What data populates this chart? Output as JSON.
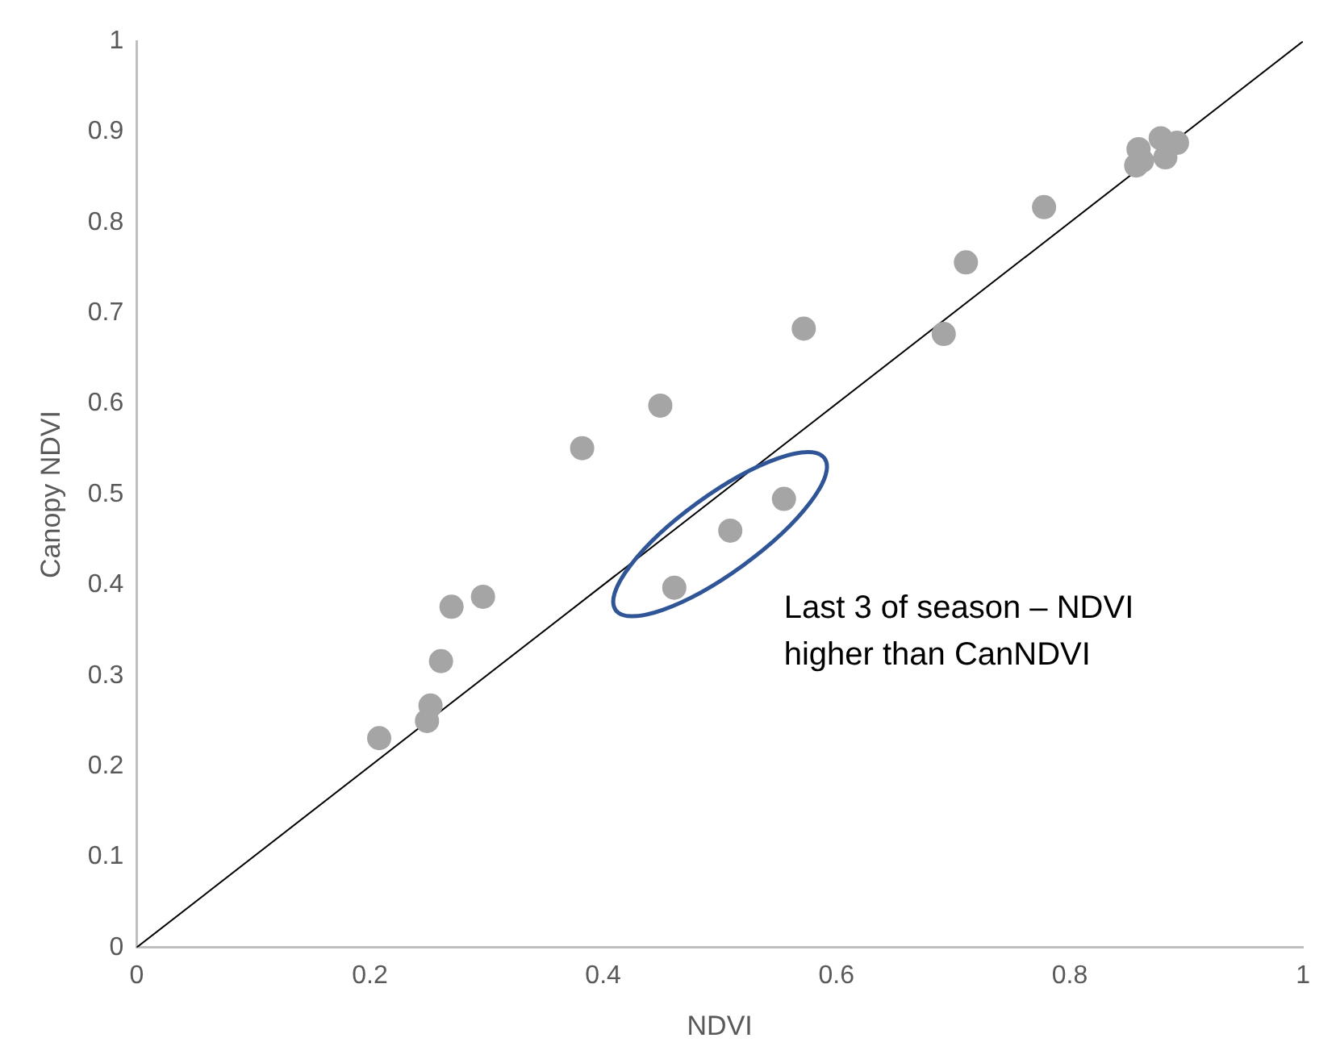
{
  "chart_data": {
    "type": "scatter",
    "xlabel": "NDVI",
    "ylabel": "Canopy NDVI",
    "xlim": [
      0,
      1
    ],
    "xticks": [
      0,
      0.2,
      0.4,
      0.6,
      0.8,
      1
    ],
    "ylim": [
      0,
      1
    ],
    "yticks": [
      0,
      0.1,
      0.2,
      0.3,
      0.4,
      0.5,
      0.6,
      0.7,
      0.8,
      0.9,
      1
    ],
    "grid": false,
    "legend": false,
    "marker": "circle",
    "series": [
      {
        "color": "#a5a5a5",
        "x": [
          0.208,
          0.249,
          0.252,
          0.261,
          0.27,
          0.297,
          0.382,
          0.449,
          0.572,
          0.692,
          0.711,
          0.778,
          0.857,
          0.859,
          0.862,
          0.878,
          0.882,
          0.892,
          0.461,
          0.509,
          0.555
        ],
        "values": [
          0.231,
          0.25,
          0.267,
          0.316,
          0.376,
          0.387,
          0.551,
          0.598,
          0.683,
          0.677,
          0.756,
          0.817,
          0.863,
          0.881,
          0.868,
          0.893,
          0.872,
          0.888,
          0.397,
          0.46,
          0.495
        ]
      },
      {
        "type": "line",
        "marker": "none",
        "color": "#000000",
        "x": [
          0,
          1
        ],
        "values": [
          0,
          1
        ]
      }
    ],
    "annotations": [
      "Last 3 of season – NDVI higher than CanNDVI"
    ]
  }
}
